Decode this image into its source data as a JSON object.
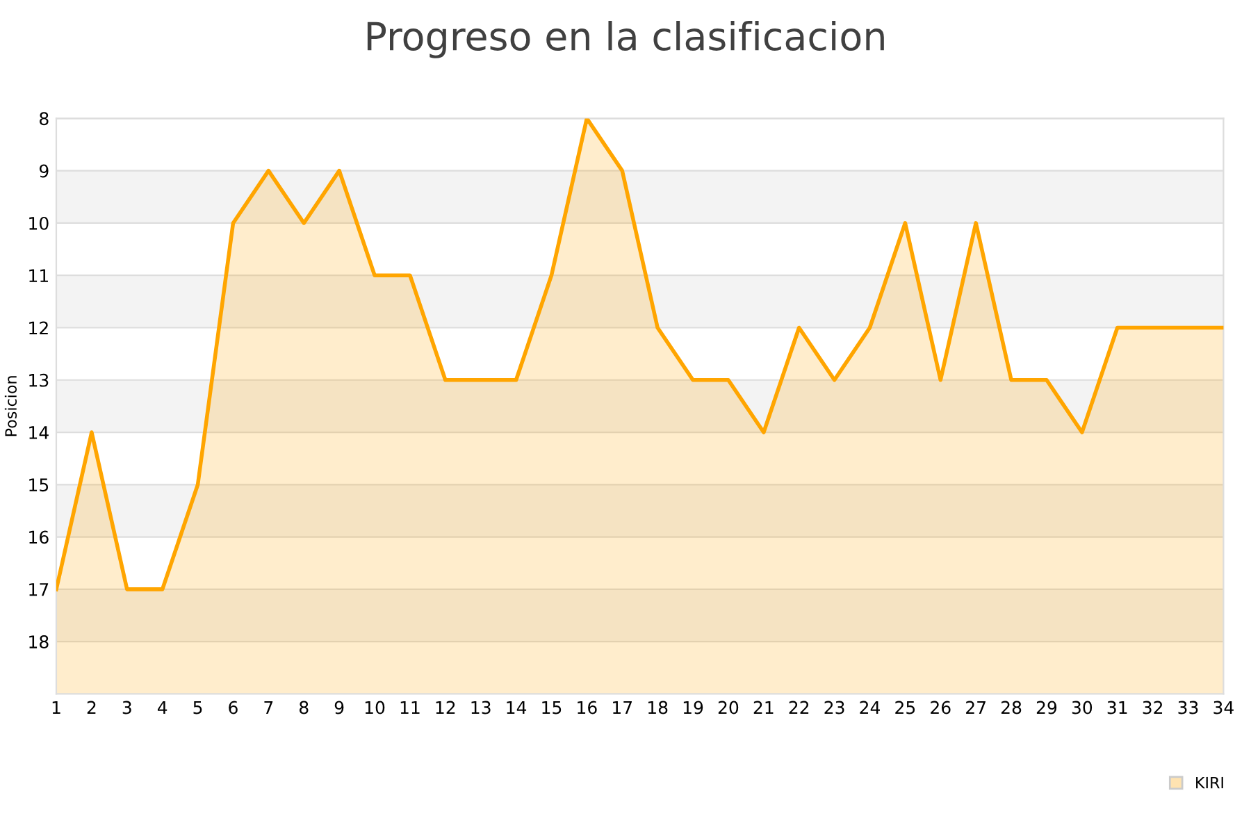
{
  "chart_data": {
    "type": "area",
    "title": "Progreso en la clasificacion",
    "ylabel": "Posicion",
    "x": [
      1,
      2,
      3,
      4,
      5,
      6,
      7,
      8,
      9,
      10,
      11,
      12,
      13,
      14,
      15,
      16,
      17,
      18,
      19,
      20,
      21,
      22,
      23,
      24,
      25,
      26,
      27,
      28,
      29,
      30,
      31,
      32,
      33,
      34
    ],
    "series": [
      {
        "name": "KIRI",
        "color": "#ffa500",
        "values": [
          17,
          14,
          17,
          17,
          15,
          10,
          9,
          10,
          9,
          11,
          11,
          13,
          13,
          13,
          11,
          8,
          9,
          12,
          13,
          13,
          14,
          12,
          13,
          12,
          10,
          13,
          10,
          13,
          13,
          14,
          12,
          12,
          12,
          12
        ]
      }
    ],
    "xlim": [
      1,
      34
    ],
    "xticks": [
      1,
      2,
      3,
      4,
      5,
      6,
      7,
      8,
      9,
      10,
      11,
      12,
      13,
      14,
      15,
      16,
      17,
      18,
      19,
      20,
      21,
      22,
      23,
      24,
      25,
      26,
      27,
      28,
      29,
      30,
      31,
      32,
      33,
      34
    ],
    "ylim": [
      19,
      8
    ],
    "yticks": [
      8,
      9,
      10,
      11,
      12,
      13,
      14,
      15,
      16,
      17,
      18
    ],
    "grid": "y",
    "legend": "bottom right",
    "marker": "none",
    "line_style": "solid"
  }
}
